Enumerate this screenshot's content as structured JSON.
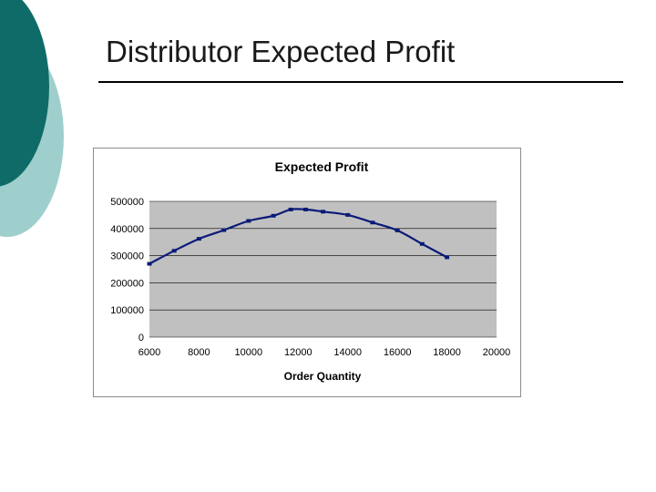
{
  "slide": {
    "title": "Distributor Expected Profit"
  },
  "colors": {
    "decor_dark": "#0f6b68",
    "decor_light": "#9fcfcd",
    "plot_background": "#c0c0c0",
    "series_line": "#0a1a78",
    "gridline": "#000000"
  },
  "chart_data": {
    "type": "line",
    "title": "Expected Profit",
    "xlabel": "Order Quantity",
    "ylabel": "",
    "xlim": [
      6000,
      20000
    ],
    "ylim": [
      0,
      500000
    ],
    "x_ticks": [
      6000,
      8000,
      10000,
      12000,
      14000,
      16000,
      18000,
      20000
    ],
    "y_ticks": [
      0,
      100000,
      200000,
      300000,
      400000,
      500000
    ],
    "grid": "horizontal",
    "legend": "none",
    "series": [
      {
        "x": [
          6000,
          7000,
          8000,
          9000,
          10000,
          11000,
          11700,
          12300,
          13000,
          14000,
          15000,
          16000,
          17000,
          18000
        ],
        "y": [
          270000,
          318000,
          362000,
          394000,
          428000,
          447000,
          470000,
          470000,
          462000,
          450000,
          422000,
          393000,
          343000,
          294000
        ]
      }
    ]
  }
}
